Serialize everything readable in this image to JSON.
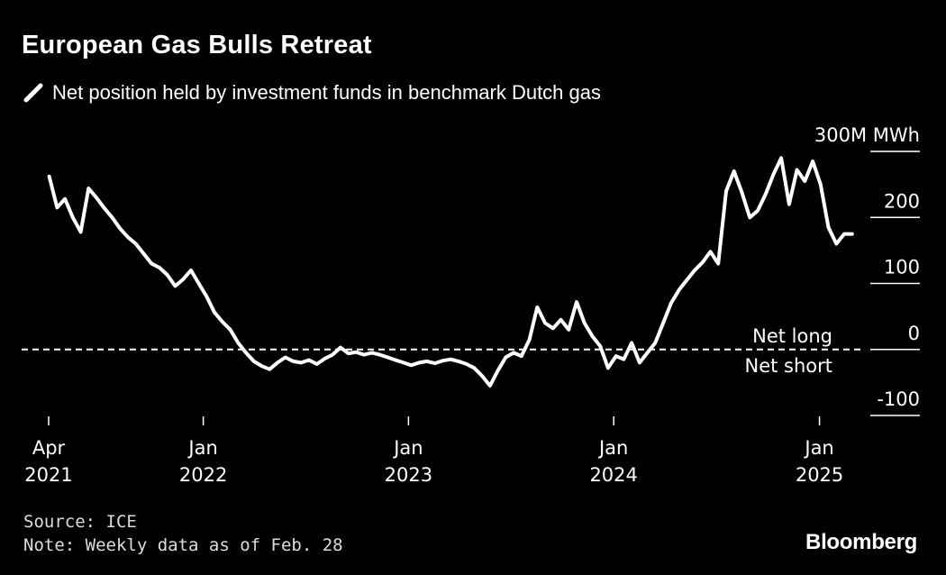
{
  "header": {
    "title": "European Gas Bulls Retreat",
    "subtitle": "Net position held by investment funds in benchmark Dutch gas"
  },
  "footer": {
    "source": "Source: ICE",
    "note": "Note: Weekly data as of Feb. 28",
    "brand": "Bloomberg"
  },
  "colors": {
    "background": "#000000",
    "line": "#ffffff",
    "grid": "#ffffff"
  },
  "chart_data": {
    "type": "line",
    "title": "European Gas Bulls Retreat",
    "subtitle": "Net position held by investment funds in benchmark Dutch gas",
    "ylabel": "300M MWh",
    "ylim": [
      -100,
      300
    ],
    "yticks": [
      {
        "value": 300,
        "label": "300M MWh"
      },
      {
        "value": 200,
        "label": "200"
      },
      {
        "value": 100,
        "label": "100"
      },
      {
        "value": 0,
        "label": "0"
      },
      {
        "value": -100,
        "label": "-100"
      }
    ],
    "xticks": [
      {
        "date": "2021-04-01",
        "label": [
          "Apr",
          "2021"
        ]
      },
      {
        "date": "2022-01-01",
        "label": [
          "Jan",
          "2022"
        ]
      },
      {
        "date": "2023-01-01",
        "label": [
          "Jan",
          "2023"
        ]
      },
      {
        "date": "2024-01-01",
        "label": [
          "Jan",
          "2024"
        ]
      },
      {
        "date": "2025-01-01",
        "label": [
          "Jan",
          "2025"
        ]
      }
    ],
    "xlim": [
      "2021-04-01",
      "2025-03-10"
    ],
    "annotations": {
      "above_zero": "Net long",
      "below_zero": "Net short"
    },
    "grid": false,
    "series": [
      {
        "values": [
          [
            "2021-04-02",
            262
          ],
          [
            "2021-04-16",
            215
          ],
          [
            "2021-04-30",
            228
          ],
          [
            "2021-05-14",
            200
          ],
          [
            "2021-05-28",
            178
          ],
          [
            "2021-06-11",
            244
          ],
          [
            "2021-06-25",
            230
          ],
          [
            "2021-07-09",
            214
          ],
          [
            "2021-07-23",
            200
          ],
          [
            "2021-08-06",
            183
          ],
          [
            "2021-08-20",
            170
          ],
          [
            "2021-09-03",
            160
          ],
          [
            "2021-09-17",
            145
          ],
          [
            "2021-10-01",
            130
          ],
          [
            "2021-10-15",
            124
          ],
          [
            "2021-10-29",
            113
          ],
          [
            "2021-11-12",
            96
          ],
          [
            "2021-11-26",
            106
          ],
          [
            "2021-12-10",
            120
          ],
          [
            "2021-12-24",
            100
          ],
          [
            "2022-01-07",
            80
          ],
          [
            "2022-01-21",
            56
          ],
          [
            "2022-02-04",
            42
          ],
          [
            "2022-02-18",
            30
          ],
          [
            "2022-03-04",
            10
          ],
          [
            "2022-03-18",
            -5
          ],
          [
            "2022-04-01",
            -18
          ],
          [
            "2022-04-15",
            -25
          ],
          [
            "2022-04-29",
            -30
          ],
          [
            "2022-05-13",
            -20
          ],
          [
            "2022-05-27",
            -12
          ],
          [
            "2022-06-10",
            -18
          ],
          [
            "2022-06-24",
            -20
          ],
          [
            "2022-07-08",
            -16
          ],
          [
            "2022-07-22",
            -22
          ],
          [
            "2022-08-05",
            -14
          ],
          [
            "2022-08-19",
            -8
          ],
          [
            "2022-09-02",
            3
          ],
          [
            "2022-09-16",
            -6
          ],
          [
            "2022-09-30",
            -4
          ],
          [
            "2022-10-14",
            -8
          ],
          [
            "2022-10-28",
            -5
          ],
          [
            "2022-11-11",
            -8
          ],
          [
            "2022-11-25",
            -12
          ],
          [
            "2022-12-09",
            -16
          ],
          [
            "2022-12-23",
            -20
          ],
          [
            "2023-01-06",
            -24
          ],
          [
            "2023-01-20",
            -20
          ],
          [
            "2023-02-03",
            -18
          ],
          [
            "2023-02-17",
            -21
          ],
          [
            "2023-03-03",
            -17
          ],
          [
            "2023-03-17",
            -15
          ],
          [
            "2023-03-31",
            -18
          ],
          [
            "2023-04-14",
            -22
          ],
          [
            "2023-04-28",
            -28
          ],
          [
            "2023-05-12",
            -40
          ],
          [
            "2023-05-26",
            -55
          ],
          [
            "2023-06-09",
            -32
          ],
          [
            "2023-06-23",
            -12
          ],
          [
            "2023-07-07",
            -5
          ],
          [
            "2023-07-21",
            -10
          ],
          [
            "2023-08-04",
            15
          ],
          [
            "2023-08-18",
            64
          ],
          [
            "2023-09-01",
            40
          ],
          [
            "2023-09-15",
            32
          ],
          [
            "2023-09-29",
            45
          ],
          [
            "2023-10-13",
            30
          ],
          [
            "2023-10-27",
            72
          ],
          [
            "2023-11-10",
            40
          ],
          [
            "2023-11-24",
            20
          ],
          [
            "2023-12-08",
            5
          ],
          [
            "2023-12-22",
            -28
          ],
          [
            "2024-01-05",
            -10
          ],
          [
            "2024-01-19",
            -15
          ],
          [
            "2024-02-02",
            10
          ],
          [
            "2024-02-16",
            -20
          ],
          [
            "2024-03-01",
            -5
          ],
          [
            "2024-03-15",
            10
          ],
          [
            "2024-03-29",
            40
          ],
          [
            "2024-04-12",
            70
          ],
          [
            "2024-04-26",
            90
          ],
          [
            "2024-05-10",
            105
          ],
          [
            "2024-05-24",
            120
          ],
          [
            "2024-06-07",
            132
          ],
          [
            "2024-06-21",
            148
          ],
          [
            "2024-07-05",
            130
          ],
          [
            "2024-07-19",
            240
          ],
          [
            "2024-08-02",
            270
          ],
          [
            "2024-08-16",
            238
          ],
          [
            "2024-08-30",
            200
          ],
          [
            "2024-09-13",
            210
          ],
          [
            "2024-09-27",
            235
          ],
          [
            "2024-10-11",
            265
          ],
          [
            "2024-10-25",
            290
          ],
          [
            "2024-11-08",
            220
          ],
          [
            "2024-11-22",
            272
          ],
          [
            "2024-12-06",
            255
          ],
          [
            "2024-12-20",
            285
          ],
          [
            "2025-01-03",
            250
          ],
          [
            "2025-01-17",
            185
          ],
          [
            "2025-01-31",
            160
          ],
          [
            "2025-02-14",
            175
          ],
          [
            "2025-02-28",
            175
          ]
        ]
      }
    ]
  }
}
